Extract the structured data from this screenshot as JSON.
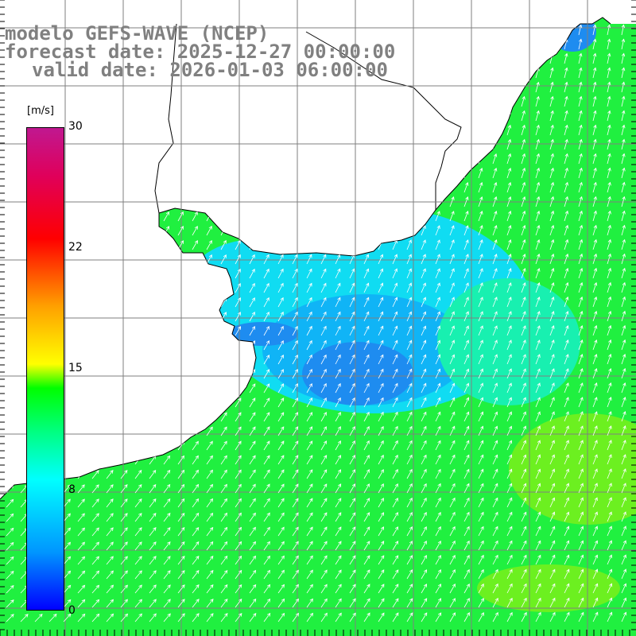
{
  "title": {
    "line1": "modelo GEFS-WAVE (NCEP)",
    "line2": "forecast date: 2025-12-27 00:00:00",
    "line3": "valid date: 2026-01-03 06:00:00"
  },
  "colorbar": {
    "units": "[m/s]",
    "ticks": [
      "0",
      "8",
      "15",
      "22",
      "30"
    ],
    "range": [
      0,
      30
    ],
    "stops": [
      {
        "value": 0,
        "color": "#0000ff"
      },
      {
        "value": 4,
        "color": "#0096ff"
      },
      {
        "value": 8,
        "color": "#00ffff"
      },
      {
        "value": 11,
        "color": "#00ff80"
      },
      {
        "value": 14,
        "color": "#00ff00"
      },
      {
        "value": 15,
        "color": "#ffff00"
      },
      {
        "value": 19,
        "color": "#ffa000"
      },
      {
        "value": 23,
        "color": "#ff0000"
      },
      {
        "value": 27,
        "color": "#e0005a"
      },
      {
        "value": 30,
        "color": "#c01890"
      }
    ]
  },
  "map": {
    "land_color": "#ffffff",
    "grid_color": "#7f7f7f",
    "coast_color": "#000000",
    "arrow_color": "#ffffff",
    "field_colors": {
      "blue": "#1e8cf0",
      "cyan_blue": "#10b4f6",
      "cyan": "#10dcf2",
      "green_cyan": "#18f0b0",
      "green": "#20f040",
      "lime": "#6cf020"
    }
  }
}
